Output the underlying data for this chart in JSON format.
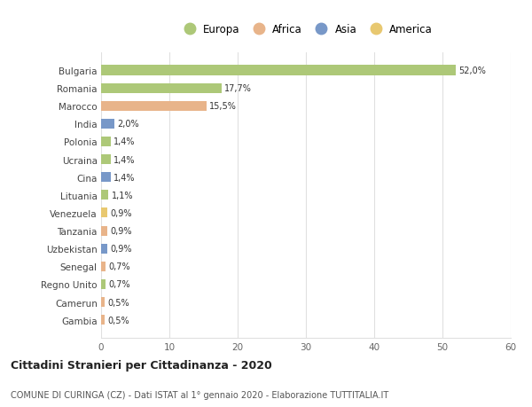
{
  "countries": [
    "Bulgaria",
    "Romania",
    "Marocco",
    "India",
    "Polonia",
    "Ucraina",
    "Cina",
    "Lituania",
    "Venezuela",
    "Tanzania",
    "Uzbekistan",
    "Senegal",
    "Regno Unito",
    "Camerun",
    "Gambia"
  ],
  "values": [
    52.0,
    17.7,
    15.5,
    2.0,
    1.4,
    1.4,
    1.4,
    1.1,
    0.9,
    0.9,
    0.9,
    0.7,
    0.7,
    0.5,
    0.5
  ],
  "labels": [
    "52,0%",
    "17,7%",
    "15,5%",
    "2,0%",
    "1,4%",
    "1,4%",
    "1,4%",
    "1,1%",
    "0,9%",
    "0,9%",
    "0,9%",
    "0,7%",
    "0,7%",
    "0,5%",
    "0,5%"
  ],
  "colors": [
    "#adc878",
    "#adc878",
    "#e8b48a",
    "#7898c8",
    "#adc878",
    "#adc878",
    "#7898c8",
    "#adc878",
    "#e8c870",
    "#e8b48a",
    "#7898c8",
    "#e8b48a",
    "#adc878",
    "#e8b48a",
    "#e8b48a"
  ],
  "continent_colors": {
    "Europa": "#adc878",
    "Africa": "#e8b48a",
    "Asia": "#7898c8",
    "America": "#e8c870"
  },
  "title": "Cittadini Stranieri per Cittadinanza - 2020",
  "subtitle": "COMUNE DI CURINGA (CZ) - Dati ISTAT al 1° gennaio 2020 - Elaborazione TUTTITALIA.IT",
  "xlim": [
    0,
    60
  ],
  "xticks": [
    0,
    10,
    20,
    30,
    40,
    50,
    60
  ],
  "background_color": "#ffffff",
  "grid_color": "#e0e0e0"
}
